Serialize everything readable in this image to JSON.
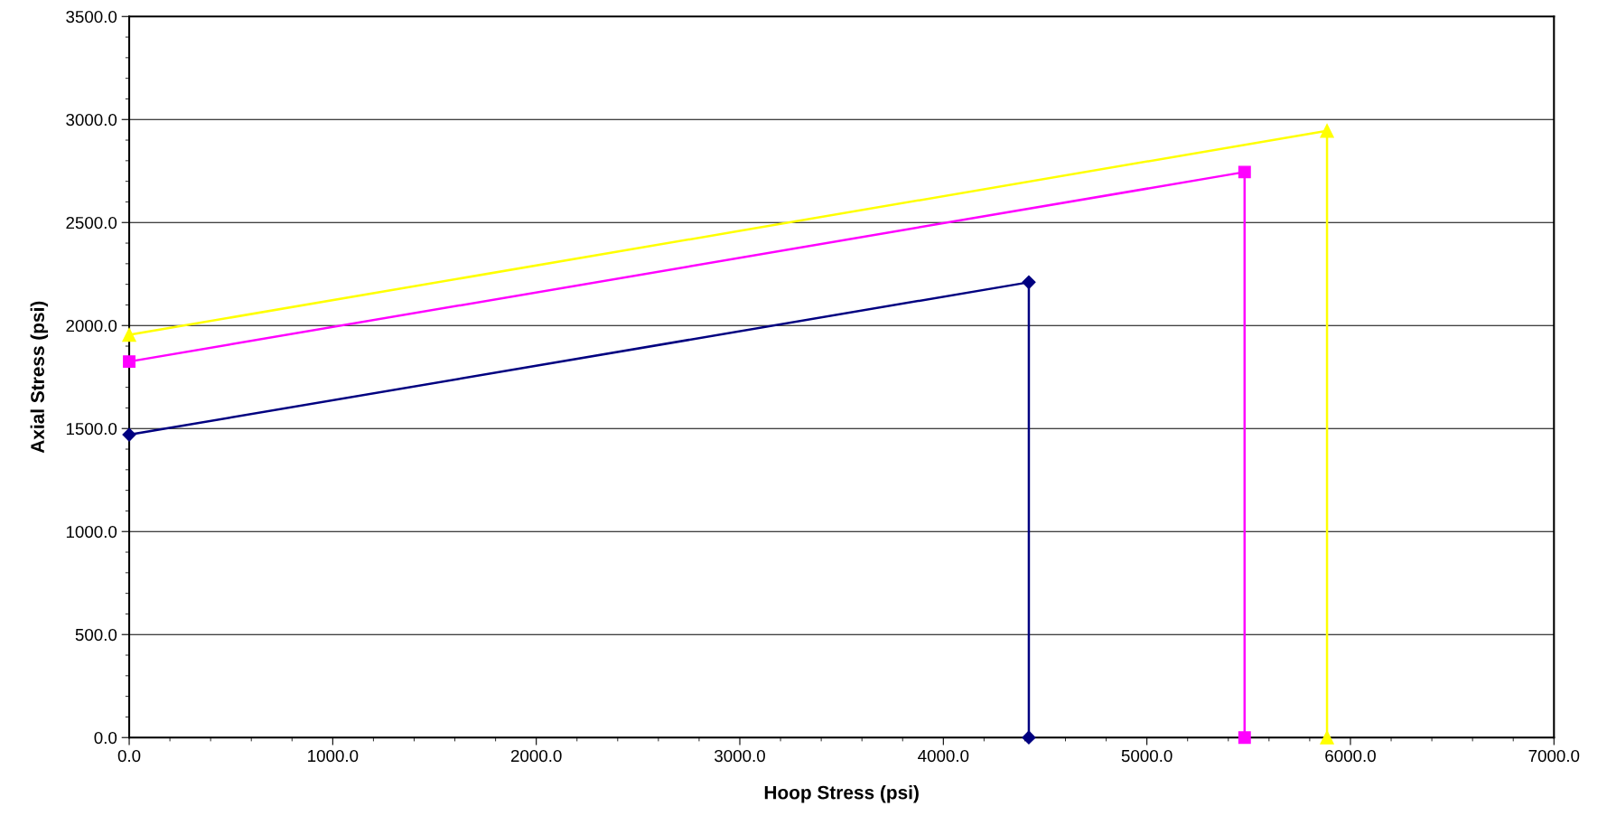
{
  "chart_data": {
    "type": "line",
    "xlabel": "Hoop Stress (psi)",
    "ylabel": "Axial Stress (psi)",
    "series": [
      {
        "color": "#000080",
        "marker": "diamond",
        "x": [
          0,
          4420,
          4420
        ],
        "values": [
          1470,
          2210,
          0
        ]
      },
      {
        "color": "#ff00ff",
        "marker": "square",
        "x": [
          0,
          5480,
          5480
        ],
        "values": [
          1825,
          2745,
          0
        ]
      },
      {
        "color": "#ffff00",
        "marker": "triangle",
        "x": [
          0,
          5885,
          5885
        ],
        "values": [
          1955,
          2945,
          0
        ]
      }
    ],
    "xlim": [
      0,
      7000
    ],
    "ylim": [
      0,
      3500
    ],
    "xticks": [
      {
        "value": 0,
        "label": "0.0"
      },
      {
        "value": 1000,
        "label": "1000.0"
      },
      {
        "value": 2000,
        "label": "2000.0"
      },
      {
        "value": 3000,
        "label": "3000.0"
      },
      {
        "value": 4000,
        "label": "4000.0"
      },
      {
        "value": 5000,
        "label": "5000.0"
      },
      {
        "value": 6000,
        "label": "6000.0"
      },
      {
        "value": 7000,
        "label": "7000.0"
      }
    ],
    "yticks": [
      {
        "value": 0,
        "label": "0.0"
      },
      {
        "value": 500,
        "label": "500.0"
      },
      {
        "value": 1000,
        "label": "1000.0"
      },
      {
        "value": 1500,
        "label": "1500.0"
      },
      {
        "value": 2000,
        "label": "2000.0"
      },
      {
        "value": 2500,
        "label": "2500.0"
      },
      {
        "value": 3000,
        "label": "3000.0"
      },
      {
        "value": 3500,
        "label": "3500.0"
      }
    ],
    "grid": "y",
    "legend": false
  }
}
